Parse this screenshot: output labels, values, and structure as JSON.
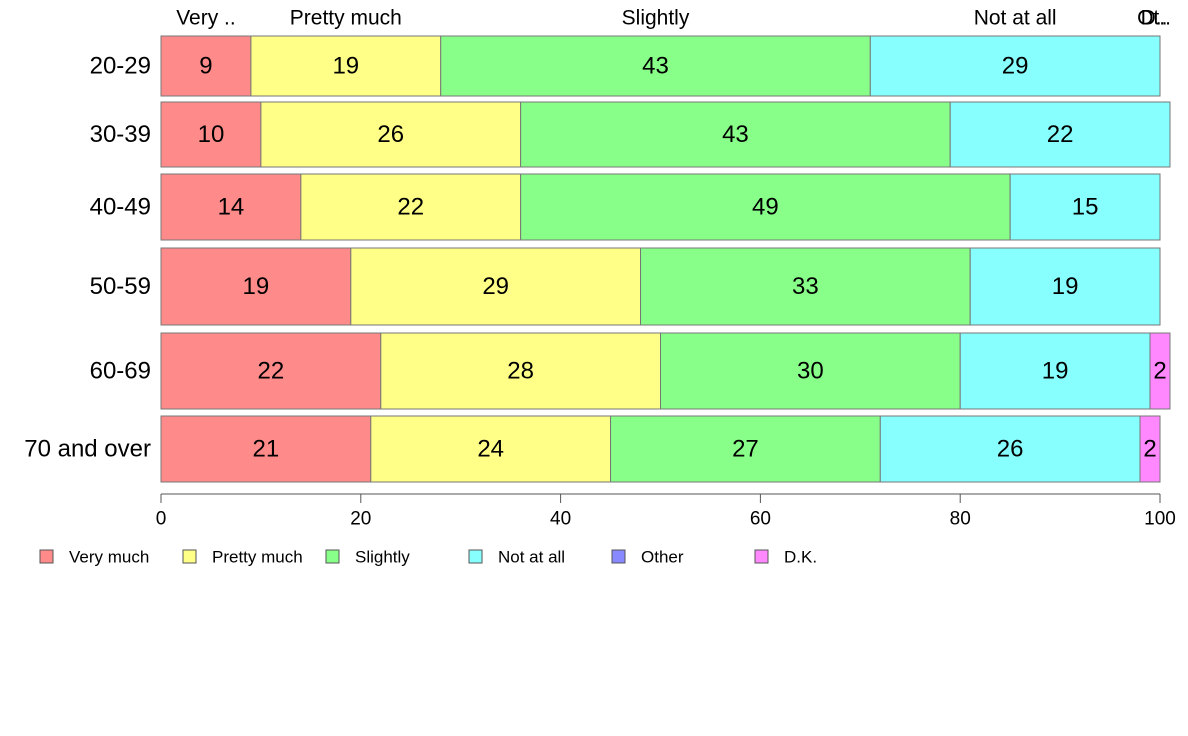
{
  "chart_data": {
    "type": "bar",
    "orientation": "horizontal",
    "stacked": true,
    "categories": [
      "20-29",
      "30-39",
      "40-49",
      "50-59",
      "60-69",
      "70 and over"
    ],
    "series": [
      {
        "name": "Very much",
        "color": "#FF8A8A",
        "values": [
          9,
          10,
          14,
          19,
          22,
          21
        ],
        "labels": [
          "9",
          "10",
          "14",
          "19",
          "22",
          "21"
        ]
      },
      {
        "name": "Pretty much",
        "color": "#FFFF88",
        "values": [
          19,
          26,
          22,
          29,
          28,
          24
        ],
        "labels": [
          "19",
          "26",
          "22",
          "29",
          "28",
          "24"
        ]
      },
      {
        "name": "Slightly",
        "color": "#88FF88",
        "values": [
          43,
          43,
          49,
          33,
          30,
          27
        ],
        "labels": [
          "43",
          "43",
          "49",
          "33",
          "30",
          "27"
        ]
      },
      {
        "name": "Not at all",
        "color": "#88FFFF",
        "values": [
          29,
          22,
          15,
          19,
          19,
          26
        ],
        "labels": [
          "29",
          "22",
          "15",
          "19",
          "19",
          "26"
        ]
      },
      {
        "name": "Other",
        "color": "#8888FF",
        "values": [
          0,
          0,
          0,
          0,
          0,
          0
        ],
        "labels": [
          "",
          "",
          "",
          "",
          "",
          ""
        ]
      },
      {
        "name": "D.K.",
        "color": "#FF88FF",
        "values": [
          0,
          0,
          0,
          0,
          2,
          2
        ],
        "labels": [
          "",
          "",
          "",
          "",
          "2",
          "2"
        ]
      }
    ],
    "top_labels": [
      "Very ..",
      "Pretty much",
      "Slightly",
      "Not at all",
      "Ot..",
      "D.."
    ],
    "xlim": [
      0,
      100
    ],
    "xticks": [
      0,
      20,
      40,
      60,
      80,
      100
    ],
    "xtick_labels": [
      "0",
      "20",
      "40",
      "60",
      "80",
      "100"
    ],
    "grid": false,
    "legend": "bottom-left"
  }
}
